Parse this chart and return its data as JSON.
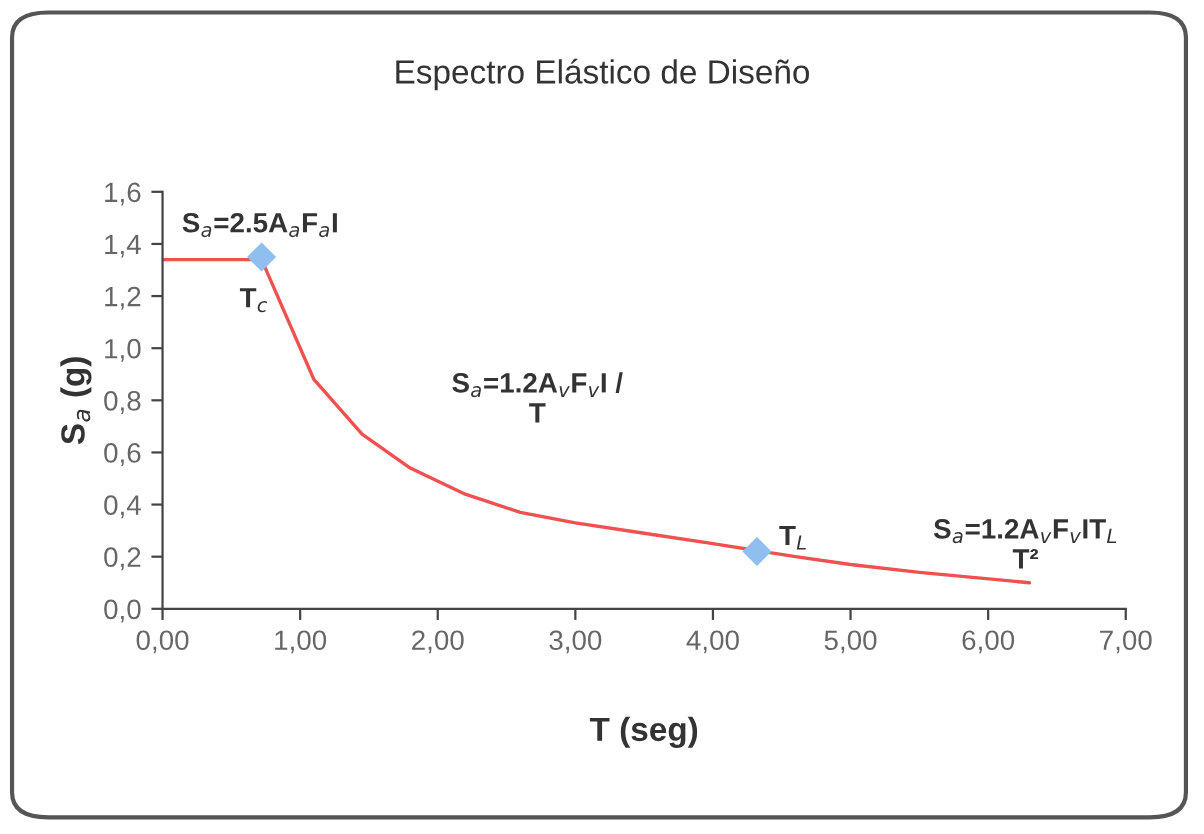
{
  "chart_data": {
    "type": "line",
    "title": "Espectro Elástico de Diseño",
    "xlabel": "T (seg)",
    "ylabel": "S$_{a}$ (g)",
    "xlim": [
      0,
      7
    ],
    "xticks": [
      {
        "value": 0,
        "label": "0,00"
      },
      {
        "value": 1,
        "label": "1,00"
      },
      {
        "value": 2,
        "label": "2,00"
      },
      {
        "value": 3,
        "label": "3,00"
      },
      {
        "value": 4,
        "label": "4,00"
      },
      {
        "value": 5,
        "label": "5,00"
      },
      {
        "value": 6,
        "label": "6,00"
      },
      {
        "value": 7,
        "label": "7,00"
      }
    ],
    "ylim": [
      0,
      1.6
    ],
    "yticks": [
      {
        "value": 0,
        "label": "0,0"
      },
      {
        "value": 0.2,
        "label": "0,2"
      },
      {
        "value": 0.4,
        "label": "0,4"
      },
      {
        "value": 0.6,
        "label": "0,6"
      },
      {
        "value": 0.8,
        "label": "0,8"
      },
      {
        "value": 1.0,
        "label": "1,0"
      },
      {
        "value": 1.2,
        "label": "1,2"
      },
      {
        "value": 1.4,
        "label": "1,4"
      },
      {
        "value": 1.6,
        "label": "1,6"
      }
    ],
    "grid": false,
    "legend": false,
    "series": [
      {
        "color": "#f05050",
        "marker": "none",
        "line_style": "solid",
        "x": [
          0,
          0.72,
          1.1,
          1.45,
          1.8,
          2.2,
          2.6,
          3.0,
          3.5,
          4.0,
          4.6,
          5.0,
          5.5,
          6.3
        ],
        "values": [
          1.34,
          1.34,
          0.88,
          0.67,
          0.54,
          0.44,
          0.37,
          0.33,
          0.29,
          0.25,
          0.2,
          0.17,
          0.14,
          0.1
        ]
      },
      {
        "type": "scatter",
        "color": "#8fbfef",
        "marker": "diamond",
        "x": [
          0.72,
          4.32
        ],
        "values": [
          1.35,
          0.22
        ]
      }
    ],
    "annotations": [
      "S$_{a}$=2.5A$_{a}$F$_{a}$I",
      "T$_{c}$",
      "S$_{a}$=1.2A$_{v}$F$_{v}$I /\nT",
      "T$_{L}$",
      "S$_{a}$=1.2A$_{v}$F$_{v}$IT$_{L}$\nT²"
    ]
  }
}
